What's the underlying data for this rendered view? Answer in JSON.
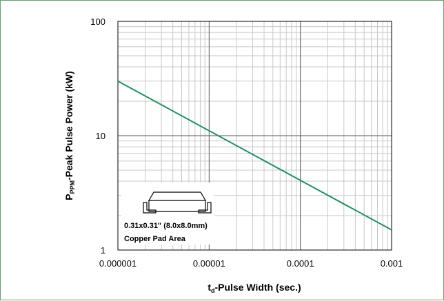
{
  "chart_data": {
    "type": "line",
    "x_scale": "log",
    "y_scale": "log",
    "xlim": [
      1e-06,
      0.001
    ],
    "ylim": [
      1,
      100
    ],
    "x_ticks": [
      "0.000001",
      "0.00001",
      "0.0001",
      "0.001"
    ],
    "y_ticks": [
      "1",
      "10",
      "100"
    ],
    "grid": true,
    "xlabel": {
      "main": "t",
      "sub": "d",
      "rest": "-Pulse Width (sec.)"
    },
    "ylabel": {
      "main": "P",
      "sub": "PPM",
      "rest": "-Peak Pulse Power (kW)"
    },
    "series": [
      {
        "x": [
          1e-06,
          0.001
        ],
        "y": [
          30,
          1.5
        ],
        "color": "#1e9160"
      }
    ],
    "annotation": {
      "line1": "0.31x0.31\" (8.0x8.0mm)",
      "line2": "Copper Pad Area"
    }
  }
}
